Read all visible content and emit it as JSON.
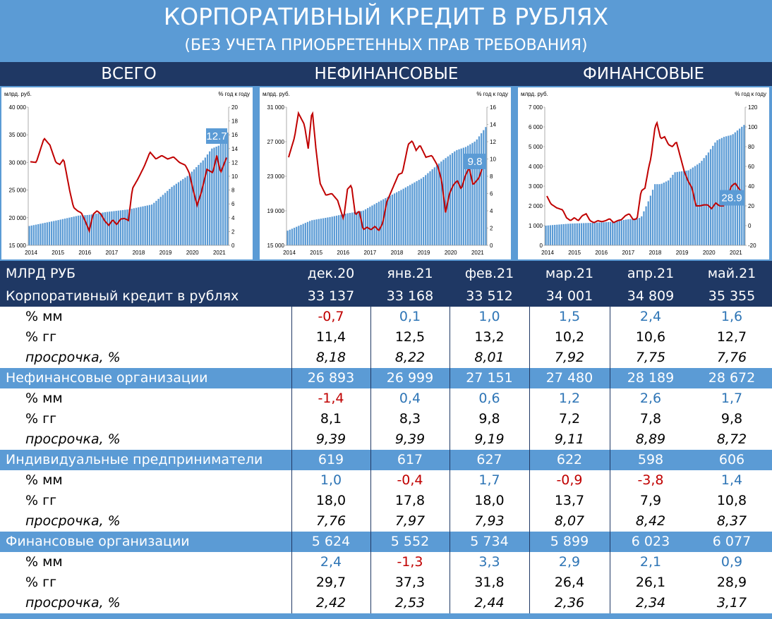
{
  "header": {
    "title": "КОРПОРАТИВНЫЙ КРЕДИТ В РУБЛЯХ",
    "subtitle": "(БЕЗ УЧЕТА ПРИОБРЕТЕННЫХ ПРАВ ТРЕБОВАНИЯ)",
    "sections": [
      "ВСЕГО",
      "НЕФИНАНСОВЫЕ",
      "ФИНАНСОВЫЕ"
    ]
  },
  "colors": {
    "bars": "#5b9bd5",
    "line": "#c00000",
    "dark": "#1f3864",
    "badge": "#5b9bd5"
  },
  "chart_data": [
    {
      "type": "bar",
      "left_label": "млрд. руб.",
      "right_label": "% год к году",
      "x_ticks": [
        "2014",
        "2015",
        "2016",
        "2017",
        "2018",
        "2019",
        "2020",
        "2021"
      ],
      "y_ticks": [
        "15 000",
        "20 000",
        "25 000",
        "30 000",
        "35 000",
        "40 000"
      ],
      "y2_ticks": [
        "0",
        "2",
        "4",
        "6",
        "8",
        "10",
        "12",
        "14",
        "16",
        "18",
        "20"
      ],
      "ylim": [
        15000,
        40000
      ],
      "y2lim": [
        0,
        20
      ],
      "bar_anchors": [
        [
          0,
          18500
        ],
        [
          0.15,
          19600
        ],
        [
          0.25,
          20400
        ],
        [
          0.3,
          20500
        ],
        [
          0.38,
          21000
        ],
        [
          0.5,
          21500
        ],
        [
          0.62,
          22400
        ],
        [
          0.72,
          25600
        ],
        [
          0.8,
          27600
        ],
        [
          0.88,
          30500
        ],
        [
          0.92,
          32500
        ],
        [
          0.96,
          33100
        ],
        [
          1,
          35400
        ]
      ],
      "line_anchors": [
        [
          0,
          12.1
        ],
        [
          0.03,
          12.0
        ],
        [
          0.07,
          15.5
        ],
        [
          0.1,
          14.5
        ],
        [
          0.13,
          12
        ],
        [
          0.15,
          11.7
        ],
        [
          0.17,
          12.5
        ],
        [
          0.2,
          8
        ],
        [
          0.22,
          5.5
        ],
        [
          0.24,
          5.0
        ],
        [
          0.26,
          4.7
        ],
        [
          0.28,
          3.5
        ],
        [
          0.3,
          2.1
        ],
        [
          0.32,
          4.5
        ],
        [
          0.34,
          5.0
        ],
        [
          0.36,
          4.5
        ],
        [
          0.38,
          3.5
        ],
        [
          0.4,
          2.9
        ],
        [
          0.42,
          3.7
        ],
        [
          0.44,
          3.0
        ],
        [
          0.46,
          3.8
        ],
        [
          0.48,
          3.9
        ],
        [
          0.5,
          3.6
        ],
        [
          0.52,
          8.2
        ],
        [
          0.55,
          9.7
        ],
        [
          0.58,
          11.4
        ],
        [
          0.61,
          13.5
        ],
        [
          0.64,
          12.5
        ],
        [
          0.67,
          13.0
        ],
        [
          0.7,
          12.5
        ],
        [
          0.73,
          12.8
        ],
        [
          0.76,
          12.0
        ],
        [
          0.79,
          11.6
        ],
        [
          0.81,
          10.5
        ],
        [
          0.83,
          8
        ],
        [
          0.85,
          5.8
        ],
        [
          0.87,
          7.5
        ],
        [
          0.9,
          11
        ],
        [
          0.93,
          10.5
        ],
        [
          0.95,
          13
        ],
        [
          0.97,
          10.5
        ],
        [
          1,
          12.7
        ]
      ],
      "badge": "12.7"
    },
    {
      "type": "bar",
      "left_label": "млрд. руб.",
      "right_label": "% год к году",
      "x_ticks": [
        "2014",
        "2015",
        "2016",
        "2017",
        "2018",
        "2019",
        "2020",
        "2021"
      ],
      "y_ticks": [
        "15 000",
        "19 000",
        "23 000",
        "27 000",
        "31 000"
      ],
      "y2_ticks": [
        "0",
        "2",
        "4",
        "6",
        "8",
        "10",
        "12",
        "14",
        "16"
      ],
      "ylim": [
        15000,
        31000
      ],
      "y2lim": [
        0,
        16
      ],
      "bar_anchors": [
        [
          0,
          16700
        ],
        [
          0.12,
          17900
        ],
        [
          0.22,
          18300
        ],
        [
          0.3,
          18700
        ],
        [
          0.38,
          19000
        ],
        [
          0.48,
          20300
        ],
        [
          0.58,
          21500
        ],
        [
          0.68,
          22800
        ],
        [
          0.78,
          24800
        ],
        [
          0.85,
          26000
        ],
        [
          0.9,
          26400
        ],
        [
          0.95,
          27100
        ],
        [
          1,
          28700
        ]
      ],
      "line_anchors": [
        [
          0,
          10.2
        ],
        [
          0.03,
          12.5
        ],
        [
          0.05,
          15.3
        ],
        [
          0.08,
          14
        ],
        [
          0.1,
          11.2
        ],
        [
          0.12,
          15.8
        ],
        [
          0.14,
          11
        ],
        [
          0.16,
          7.2
        ],
        [
          0.19,
          5.8
        ],
        [
          0.22,
          6.0
        ],
        [
          0.25,
          5.2
        ],
        [
          0.28,
          3.0
        ],
        [
          0.3,
          6.5
        ],
        [
          0.32,
          7.0
        ],
        [
          0.34,
          3.5
        ],
        [
          0.36,
          4.0
        ],
        [
          0.38,
          1.8
        ],
        [
          0.4,
          2.1
        ],
        [
          0.42,
          1.8
        ],
        [
          0.44,
          2.2
        ],
        [
          0.46,
          1.7
        ],
        [
          0.48,
          2.6
        ],
        [
          0.5,
          5.0
        ],
        [
          0.53,
          6.6
        ],
        [
          0.56,
          8.2
        ],
        [
          0.58,
          8.4
        ],
        [
          0.61,
          11.7
        ],
        [
          0.63,
          12.1
        ],
        [
          0.65,
          11
        ],
        [
          0.67,
          11.6
        ],
        [
          0.7,
          10.2
        ],
        [
          0.73,
          10.4
        ],
        [
          0.76,
          9.2
        ],
        [
          0.78,
          7.5
        ],
        [
          0.8,
          3.8
        ],
        [
          0.82,
          6.0
        ],
        [
          0.84,
          7.0
        ],
        [
          0.86,
          7.5
        ],
        [
          0.88,
          6.5
        ],
        [
          0.9,
          8.0
        ],
        [
          0.92,
          9.0
        ],
        [
          0.94,
          7.0
        ],
        [
          0.97,
          7.8
        ],
        [
          1,
          9.8
        ]
      ],
      "badge": "9.8"
    },
    {
      "type": "bar",
      "left_label": "млрд. руб.",
      "right_label": "% год к году",
      "x_ticks": [
        "2014",
        "2015",
        "2016",
        "2017",
        "2018",
        "2019",
        "2020",
        "2021"
      ],
      "y_ticks": [
        "0",
        "1 000",
        "2 000",
        "3 000",
        "4 000",
        "5 000",
        "6 000",
        "7 000"
      ],
      "y2_ticks": [
        "-20",
        "0",
        "20",
        "40",
        "60",
        "80",
        "100",
        "120"
      ],
      "ylim": [
        0,
        7000
      ],
      "y2lim": [
        -20,
        120
      ],
      "bar_anchors": [
        [
          0,
          1000
        ],
        [
          0.12,
          1100
        ],
        [
          0.25,
          1150
        ],
        [
          0.35,
          1200
        ],
        [
          0.4,
          1300
        ],
        [
          0.48,
          1400
        ],
        [
          0.52,
          2300
        ],
        [
          0.55,
          3100
        ],
        [
          0.58,
          3100
        ],
        [
          0.62,
          3300
        ],
        [
          0.65,
          3700
        ],
        [
          0.72,
          3800
        ],
        [
          0.78,
          4200
        ],
        [
          0.82,
          4700
        ],
        [
          0.86,
          5300
        ],
        [
          0.9,
          5500
        ],
        [
          0.94,
          5600
        ],
        [
          1,
          6100
        ]
      ],
      "line_anchors": [
        [
          0,
          30
        ],
        [
          0.02,
          22
        ],
        [
          0.05,
          18
        ],
        [
          0.08,
          16
        ],
        [
          0.1,
          8
        ],
        [
          0.12,
          5
        ],
        [
          0.14,
          8
        ],
        [
          0.16,
          5
        ],
        [
          0.18,
          10
        ],
        [
          0.2,
          12
        ],
        [
          0.22,
          5
        ],
        [
          0.24,
          3
        ],
        [
          0.26,
          5
        ],
        [
          0.28,
          4
        ],
        [
          0.3,
          5
        ],
        [
          0.32,
          7
        ],
        [
          0.34,
          3
        ],
        [
          0.36,
          5
        ],
        [
          0.38,
          6
        ],
        [
          0.4,
          10
        ],
        [
          0.42,
          12
        ],
        [
          0.44,
          6
        ],
        [
          0.46,
          7
        ],
        [
          0.48,
          35
        ],
        [
          0.5,
          38
        ],
        [
          0.52,
          60
        ],
        [
          0.53,
          68
        ],
        [
          0.55,
          98
        ],
        [
          0.56,
          105
        ],
        [
          0.58,
          88
        ],
        [
          0.6,
          90
        ],
        [
          0.62,
          82
        ],
        [
          0.64,
          80
        ],
        [
          0.66,
          85
        ],
        [
          0.68,
          70
        ],
        [
          0.7,
          55
        ],
        [
          0.72,
          45
        ],
        [
          0.74,
          38
        ],
        [
          0.76,
          20
        ],
        [
          0.78,
          20
        ],
        [
          0.8,
          21
        ],
        [
          0.82,
          21
        ],
        [
          0.84,
          17
        ],
        [
          0.86,
          23
        ],
        [
          0.88,
          20
        ],
        [
          0.9,
          20
        ],
        [
          0.92,
          28
        ],
        [
          0.94,
          40
        ],
        [
          0.96,
          43
        ],
        [
          0.98,
          37
        ],
        [
          0.99,
          35
        ],
        [
          1,
          28.9
        ]
      ],
      "badge": "28.9"
    }
  ],
  "table": {
    "unit": "МЛРД РУБ",
    "columns": [
      "дек.20",
      "янв.21",
      "фев.21",
      "мар.21",
      "апр.21",
      "май.21"
    ],
    "rows": [
      {
        "label": "Корпоративный кредит в рублях",
        "style": "main",
        "values": [
          "33 137",
          "33 168",
          "33 512",
          "34 001",
          "34 809",
          "35 355"
        ]
      },
      {
        "label": "% мм",
        "style": "sub",
        "values": [
          "-0,7",
          "0,1",
          "1,0",
          "1,5",
          "2,4",
          "1,6"
        ]
      },
      {
        "label": "% гг",
        "style": "sub",
        "values": [
          "11,4",
          "12,5",
          "13,2",
          "10,2",
          "10,6",
          "12,7"
        ]
      },
      {
        "label": "просрочка, %",
        "style": "sub it",
        "values": [
          "8,18",
          "8,22",
          "8,01",
          "7,92",
          "7,75",
          "7,76"
        ]
      },
      {
        "label": "Нефинансовые организации",
        "style": "grp",
        "values": [
          "26 893",
          "26 999",
          "27 151",
          "27 480",
          "28 189",
          "28 672"
        ]
      },
      {
        "label": "% мм",
        "style": "sub",
        "values": [
          "-1,4",
          "0,4",
          "0,6",
          "1,2",
          "2,6",
          "1,7"
        ]
      },
      {
        "label": "% гг",
        "style": "sub",
        "values": [
          "8,1",
          "8,3",
          "9,8",
          "7,2",
          "7,8",
          "9,8"
        ]
      },
      {
        "label": "просрочка, %",
        "style": "sub it",
        "values": [
          "9,39",
          "9,39",
          "9,19",
          "9,11",
          "8,89",
          "8,72"
        ]
      },
      {
        "label": "Индивидуальные предприниматели",
        "style": "grp",
        "values": [
          "619",
          "617",
          "627",
          "622",
          "598",
          "606"
        ]
      },
      {
        "label": "% мм",
        "style": "sub",
        "values": [
          "1,0",
          "-0,4",
          "1,7",
          "-0,9",
          "-3,8",
          "1,4"
        ]
      },
      {
        "label": "% гг",
        "style": "sub",
        "values": [
          "18,0",
          "17,8",
          "18,0",
          "13,7",
          "7,9",
          "10,8"
        ]
      },
      {
        "label": "просрочка, %",
        "style": "sub it",
        "values": [
          "7,76",
          "7,97",
          "7,93",
          "8,07",
          "8,42",
          "8,37"
        ]
      },
      {
        "label": "Финансовые организации",
        "style": "grp",
        "values": [
          "5 624",
          "5 552",
          "5 734",
          "5 899",
          "6 023",
          "6 077"
        ]
      },
      {
        "label": "% мм",
        "style": "sub",
        "values": [
          "2,4",
          "-1,3",
          "3,3",
          "2,9",
          "2,1",
          "0,9"
        ]
      },
      {
        "label": "% гг",
        "style": "sub",
        "values": [
          "29,7",
          "37,3",
          "31,8",
          "26,4",
          "26,1",
          "28,9"
        ]
      },
      {
        "label": "просрочка, %",
        "style": "sub it",
        "values": [
          "2,42",
          "2,53",
          "2,44",
          "2,36",
          "2,34",
          "3,17"
        ]
      }
    ]
  }
}
